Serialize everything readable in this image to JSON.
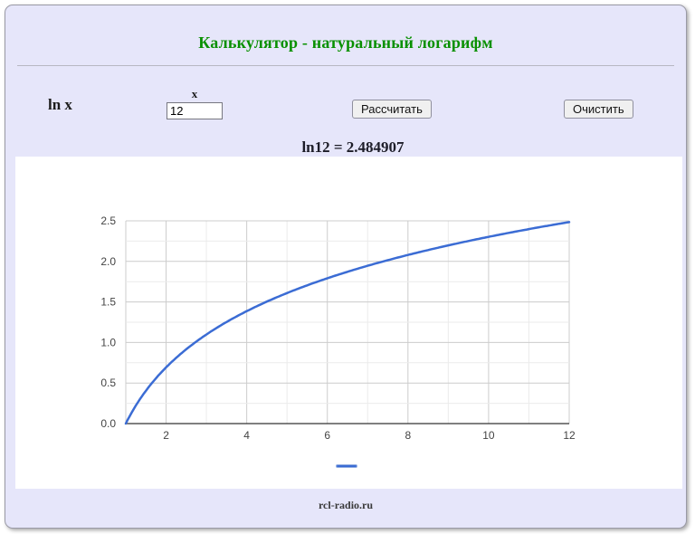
{
  "header": {
    "title": "Калькулятор - натуральный логарифм"
  },
  "form": {
    "function_label": "ln x",
    "input_label": "x",
    "input_value": "12",
    "calculate_button": "Рассчитать",
    "clear_button": "Очистить"
  },
  "result": {
    "text": "ln12 = 2.484907"
  },
  "chart_data": {
    "type": "line",
    "function": "ln(x)",
    "x_range": [
      1,
      12
    ],
    "ylim": [
      0,
      2.5
    ],
    "x_ticks": [
      2,
      4,
      6,
      8,
      10,
      12
    ],
    "y_ticks": [
      "0.0",
      "0.5",
      "1.0",
      "1.5",
      "2.0",
      "2.5"
    ],
    "points": [
      [
        1,
        0.0
      ],
      [
        2,
        0.693147
      ],
      [
        3,
        1.098612
      ],
      [
        4,
        1.386294
      ],
      [
        5,
        1.609438
      ],
      [
        6,
        1.791759
      ],
      [
        7,
        1.94591
      ],
      [
        8,
        2.079442
      ],
      [
        9,
        2.197225
      ],
      [
        10,
        2.302585
      ],
      [
        11,
        2.397895
      ],
      [
        12,
        2.484907
      ]
    ],
    "line_color": "#3b6cd4",
    "grid": true,
    "legend_position": "bottom"
  },
  "footer": {
    "text": "rcl-radio.ru"
  },
  "colors": {
    "page_bg": "#e6e6fa",
    "title_green": "#089000",
    "line_blue": "#3b6cd4",
    "grid_major": "#cccccc",
    "grid_minor": "#ebebeb",
    "baseline": "#333333"
  }
}
